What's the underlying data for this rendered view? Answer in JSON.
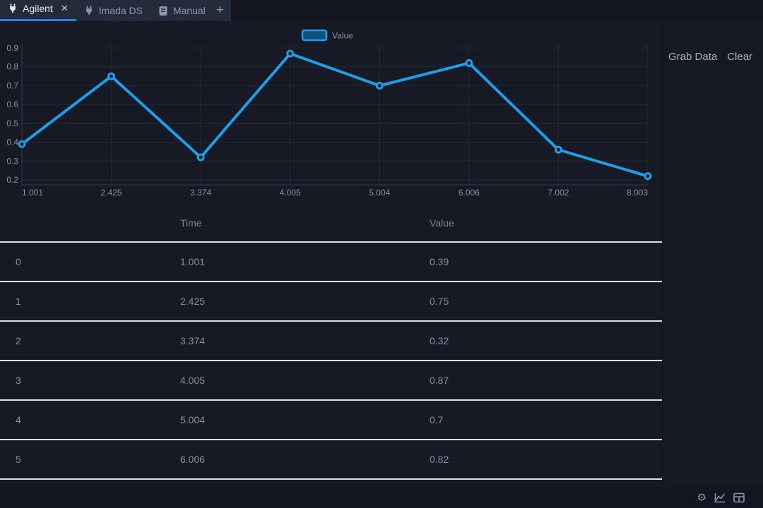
{
  "tabs": {
    "items": [
      {
        "label": "Agilent",
        "icon": "plug-icon",
        "active": true,
        "close_label": "✕"
      },
      {
        "label": "Imada DS",
        "icon": "plug-icon",
        "active": false
      },
      {
        "label": "Manual",
        "icon": "book-icon",
        "active": false
      }
    ],
    "add_label": "+"
  },
  "side_panel": {
    "grab_data_label": "Grab Data",
    "clear_label": "Clear"
  },
  "chart_data": {
    "type": "line",
    "title": "",
    "categories": [
      "1.001",
      "2.425",
      "3.374",
      "4.005",
      "5.004",
      "6.006",
      "7.002",
      "8.003"
    ],
    "series": [
      {
        "name": "Value",
        "values": [
          0.39,
          0.75,
          0.32,
          0.87,
          0.7,
          0.82,
          0.36,
          0.22
        ]
      }
    ],
    "xlabel": "",
    "ylabel": "",
    "ylim": [
      0.2,
      0.9
    ],
    "y_tick_step": 0.1,
    "grid": true,
    "legend": {
      "entries": [
        "Value"
      ],
      "position": "top-center"
    },
    "line_color": "#1c9ee8",
    "marker_fill": "#171a24",
    "gridline_color": "#23283a",
    "axis_line_color": "#363c52",
    "tick_label_color": "#8a8fa0"
  },
  "table": {
    "columns": [
      "",
      "Time",
      "Value"
    ],
    "rows": [
      [
        "0",
        "1.001",
        "0.39"
      ],
      [
        "1",
        "2.425",
        "0.75"
      ],
      [
        "2",
        "3.374",
        "0.32"
      ],
      [
        "3",
        "4.005",
        "0.87"
      ],
      [
        "4",
        "5.004",
        "0.7"
      ],
      [
        "5",
        "6.006",
        "0.82"
      ]
    ]
  },
  "status_bar": {
    "icons": [
      "settings-gear-icon",
      "line-chart-icon",
      "table-icon"
    ]
  },
  "colors": {
    "accent_blue": "#1c9ee8",
    "tab_underline_blue": "#2e7cf6",
    "row_separator": "#dfe0e5"
  }
}
